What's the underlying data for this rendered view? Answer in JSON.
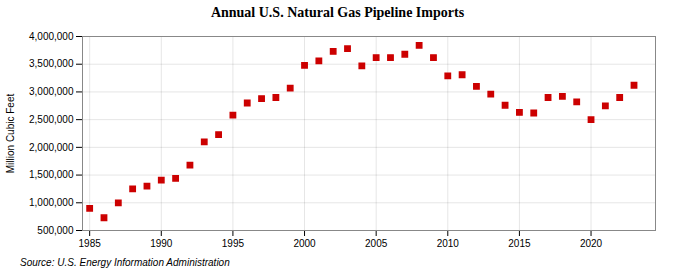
{
  "chart_data": {
    "type": "scatter",
    "title": "Annual U.S. Natural Gas Pipeline Imports",
    "y_label": "Million Cubic Feet",
    "annotations": [
      "Source: U.S. Energy Information Administration"
    ],
    "x": [
      1985,
      1986,
      1987,
      1988,
      1989,
      1990,
      1991,
      1992,
      1993,
      1994,
      1995,
      1996,
      1997,
      1998,
      1999,
      2000,
      2001,
      2002,
      2003,
      2004,
      2005,
      2006,
      2007,
      2008,
      2009,
      2010,
      2011,
      2012,
      2013,
      2014,
      2015,
      2016,
      2017,
      2018,
      2019,
      2020,
      2021,
      2022,
      2023
    ],
    "values": [
      900000,
      730000,
      1000000,
      1250000,
      1300000,
      1410000,
      1440000,
      1680000,
      2100000,
      2230000,
      2580000,
      2800000,
      2880000,
      2900000,
      3070000,
      3480000,
      3560000,
      3730000,
      3780000,
      3470000,
      3620000,
      3620000,
      3680000,
      3840000,
      3620000,
      3290000,
      3310000,
      3100000,
      2960000,
      2760000,
      2630000,
      2620000,
      2900000,
      2920000,
      2820000,
      2500000,
      2750000,
      2900000,
      3120000
    ],
    "color": "#cc0000",
    "marker": "square",
    "xlim": [
      1984.5,
      2024.5
    ],
    "xticks": [
      1985,
      1990,
      1995,
      2000,
      2005,
      2010,
      2015,
      2020
    ],
    "ylim": [
      500000,
      4000000
    ],
    "yticks": [
      {
        "value": 500000,
        "label": "500,000"
      },
      {
        "value": 1000000,
        "label": "1,000,000"
      },
      {
        "value": 1500000,
        "label": "1,500,000"
      },
      {
        "value": 2000000,
        "label": "2,000,000"
      },
      {
        "value": 2500000,
        "label": "2,500,000"
      },
      {
        "value": 3000000,
        "label": "3,000,000"
      },
      {
        "value": 3500000,
        "label": "3,500,000"
      },
      {
        "value": 4000000,
        "label": "4,000,000"
      }
    ],
    "grid": true
  }
}
